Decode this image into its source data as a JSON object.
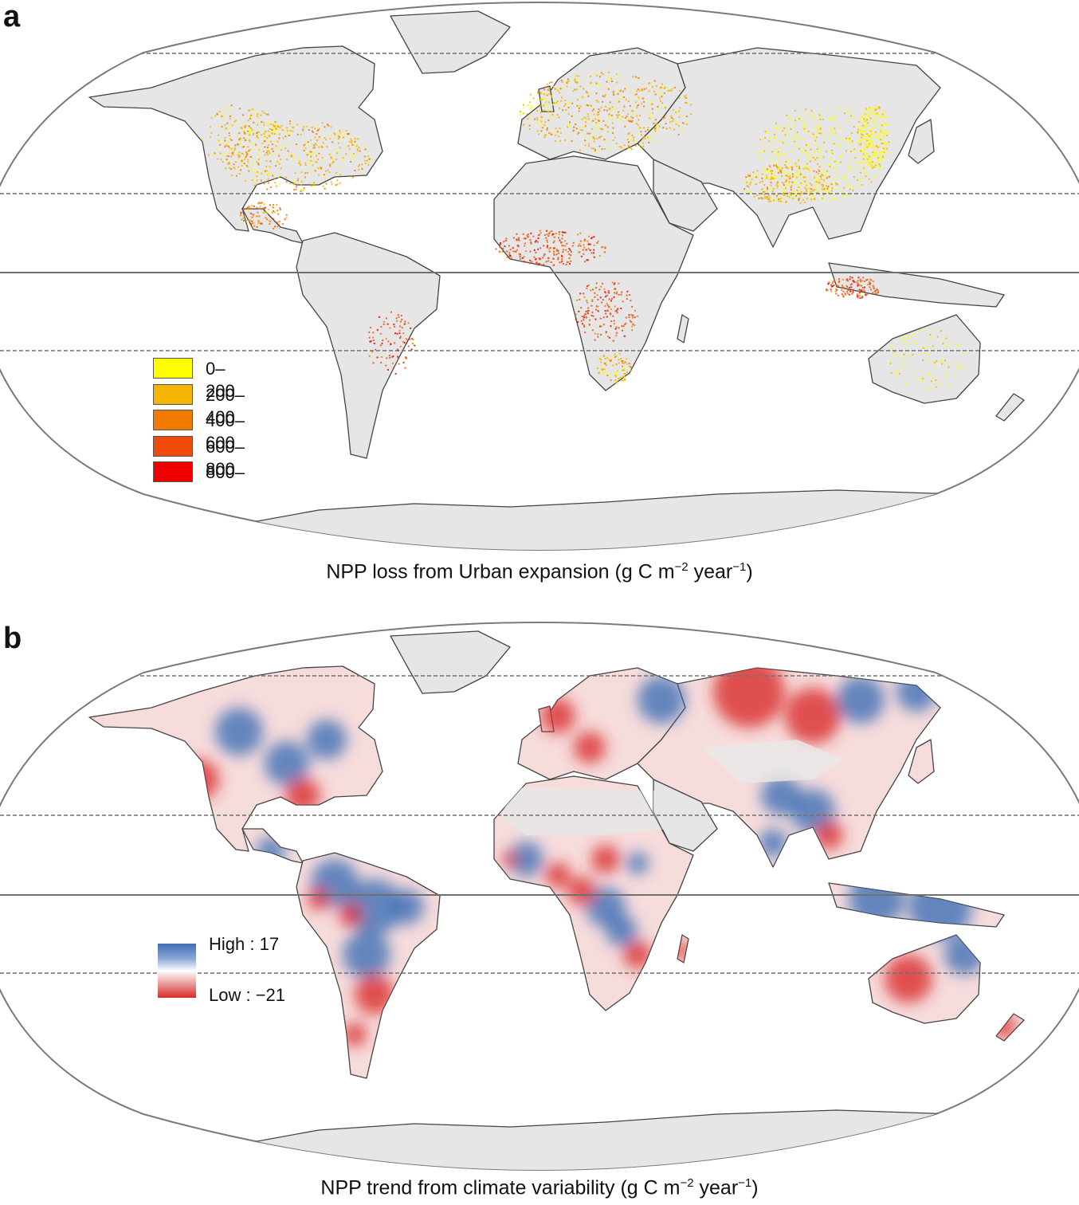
{
  "panel_a": {
    "letter": "a",
    "caption": {
      "prefix": "NPP loss from Urban expansion (g C m",
      "sup1": "−2",
      "middle": " year",
      "sup2": "−1",
      "suffix": ")"
    },
    "legend": [
      {
        "label": "0–200",
        "color": "#ffff00"
      },
      {
        "label": "200–400",
        "color": "#f4b400"
      },
      {
        "label": "400–600",
        "color": "#f07b00"
      },
      {
        "label": "600–800",
        "color": "#ee4a0c"
      },
      {
        "label": "800–",
        "color": "#ee0000"
      }
    ]
  },
  "panel_b": {
    "letter": "b",
    "caption": {
      "prefix": "NPP trend from climate variability (g C m",
      "sup1": "−2",
      "middle": " year",
      "sup2": "−1",
      "suffix": ")"
    },
    "legend": {
      "high_label": "High : 17",
      "low_label": "Low : −21",
      "high_color": "#3f6fb5",
      "low_color": "#d92b2b"
    }
  },
  "colors": {
    "land": "#e6e6e6",
    "coast": "#444444",
    "frame": "#7a7a7a",
    "gridline": "#707070"
  }
}
